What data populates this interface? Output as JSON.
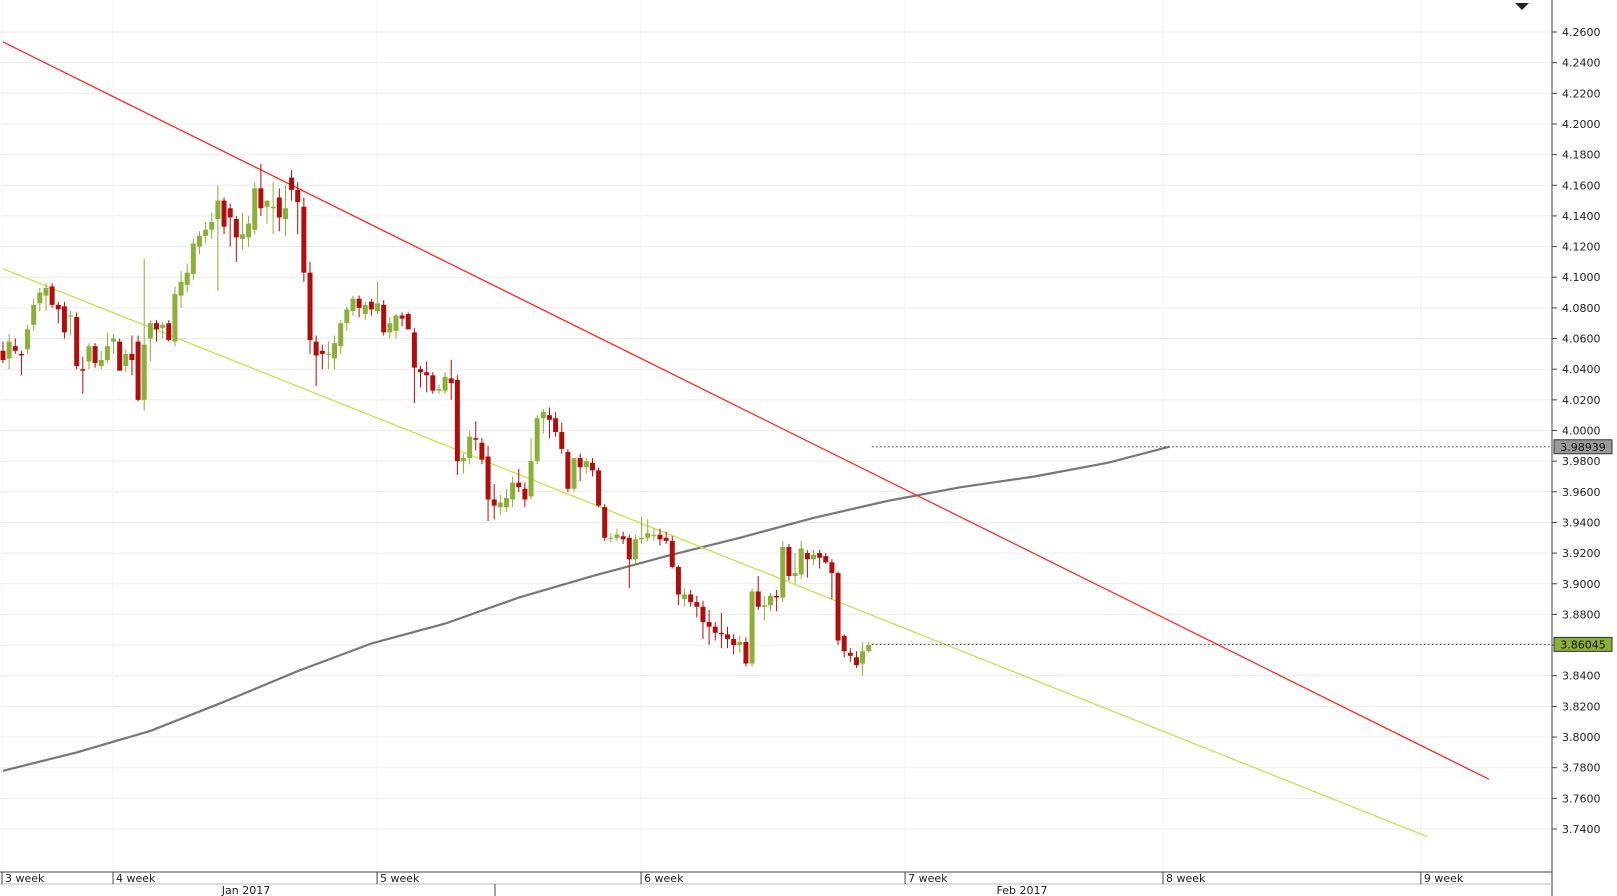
{
  "chart_data": {
    "type": "candlestick",
    "title": "",
    "xlabel": "",
    "ylabel": "",
    "ylim": [
      3.728,
      4.278
    ],
    "colors": {
      "up": "#8cae3a",
      "down": "#b00d0d",
      "resistance": "#ff2a2a",
      "support": "#c9e05a",
      "moving_average": "#777777"
    },
    "y_ticks": [
      "4.2600",
      "4.2400",
      "4.2200",
      "4.2000",
      "4.1800",
      "4.1600",
      "4.1400",
      "4.1200",
      "4.1000",
      "4.0800",
      "4.0600",
      "4.0400",
      "4.0200",
      "4.0000",
      "3.9800",
      "3.9600",
      "3.9400",
      "3.9200",
      "3.9000",
      "3.8800",
      "3.8600",
      "3.8400",
      "3.8200",
      "3.8000",
      "3.7800",
      "3.7600",
      "3.7400"
    ],
    "x_ticks": [
      "3 week",
      "4 week",
      "5 week",
      "6 week",
      "7 week",
      "8 week",
      "9 week"
    ],
    "months": [
      "Jan 2017",
      "Feb 2017"
    ],
    "price_badges": [
      {
        "label": "3.98939",
        "value": 3.98939,
        "style": "gray"
      },
      {
        "label": "3.86045",
        "value": 3.86045,
        "style": "green"
      }
    ],
    "trendlines": [
      {
        "name": "resistance",
        "from": [
          0,
          4.2535
        ],
        "to": [
          242,
          3.7725
        ]
      },
      {
        "name": "support",
        "from": [
          0,
          4.1055
        ],
        "to": [
          232,
          3.735
        ]
      }
    ],
    "moving_average": [
      [
        0,
        3.778
      ],
      [
        12,
        3.79
      ],
      [
        24,
        3.804
      ],
      [
        36,
        3.823
      ],
      [
        48,
        3.843
      ],
      [
        60,
        3.861
      ],
      [
        72,
        3.874
      ],
      [
        84,
        3.891
      ],
      [
        96,
        3.905
      ],
      [
        108,
        3.918
      ],
      [
        120,
        3.93
      ],
      [
        132,
        3.943
      ],
      [
        144,
        3.954
      ],
      [
        156,
        3.963
      ],
      [
        168,
        3.97
      ],
      [
        180,
        3.979
      ],
      [
        190,
        3.9894
      ]
    ],
    "candles": [
      [
        4.052,
        4.058,
        4.044,
        4.046
      ],
      [
        4.047,
        4.063,
        4.04,
        4.058
      ],
      [
        4.055,
        4.06,
        4.05,
        4.052
      ],
      [
        4.05,
        4.052,
        4.036,
        4.049
      ],
      [
        4.053,
        4.069,
        4.05,
        4.066
      ],
      [
        4.069,
        4.086,
        4.065,
        4.082
      ],
      [
        4.083,
        4.093,
        4.078,
        4.09
      ],
      [
        4.088,
        4.096,
        4.078,
        4.093
      ],
      [
        4.094,
        4.096,
        4.08,
        4.082
      ],
      [
        4.082,
        4.084,
        4.07,
        4.079
      ],
      [
        4.081,
        4.084,
        4.06,
        4.064
      ],
      [
        4.075,
        4.078,
        4.062,
        4.075
      ],
      [
        4.074,
        4.077,
        4.04,
        4.042
      ],
      [
        4.04,
        4.048,
        4.024,
        4.039
      ],
      [
        4.045,
        4.057,
        4.04,
        4.055
      ],
      [
        4.055,
        4.057,
        4.041,
        4.044
      ],
      [
        4.042,
        4.052,
        4.04,
        4.046
      ],
      [
        4.046,
        4.064,
        4.044,
        4.055
      ],
      [
        4.058,
        4.063,
        4.05,
        4.06
      ],
      [
        4.058,
        4.06,
        4.04,
        4.039
      ],
      [
        4.042,
        4.053,
        4.038,
        4.05
      ],
      [
        4.05,
        4.062,
        4.036,
        4.046
      ],
      [
        4.058,
        4.062,
        4.019,
        4.02
      ],
      [
        4.02,
        4.112,
        4.013,
        4.056
      ],
      [
        4.06,
        4.072,
        4.045,
        4.07
      ],
      [
        4.07,
        4.072,
        4.058,
        4.066
      ],
      [
        4.067,
        4.071,
        4.06,
        4.069
      ],
      [
        4.07,
        4.072,
        4.058,
        4.059
      ],
      [
        4.058,
        4.094,
        4.055,
        4.089
      ],
      [
        4.088,
        4.104,
        4.08,
        4.097
      ],
      [
        4.095,
        4.109,
        4.09,
        4.103
      ],
      [
        4.102,
        4.125,
        4.098,
        4.122
      ],
      [
        4.12,
        4.13,
        4.115,
        4.127
      ],
      [
        4.127,
        4.136,
        4.122,
        4.131
      ],
      [
        4.131,
        4.142,
        4.125,
        4.136
      ],
      [
        4.138,
        4.16,
        4.091,
        4.15
      ],
      [
        4.15,
        4.152,
        4.128,
        4.133
      ],
      [
        4.145,
        4.148,
        4.12,
        4.139
      ],
      [
        4.138,
        4.14,
        4.11,
        4.126
      ],
      [
        4.125,
        4.142,
        4.118,
        4.128
      ],
      [
        4.126,
        4.14,
        4.12,
        4.135
      ],
      [
        4.131,
        4.162,
        4.128,
        4.158
      ],
      [
        4.158,
        4.174,
        4.14,
        4.145
      ],
      [
        4.146,
        4.15,
        4.135,
        4.15
      ],
      [
        4.145,
        4.162,
        4.128,
        4.146
      ],
      [
        4.152,
        4.158,
        4.13,
        4.139
      ],
      [
        4.138,
        4.16,
        4.127,
        4.145
      ],
      [
        4.165,
        4.17,
        4.15,
        4.157
      ],
      [
        4.157,
        4.162,
        4.128,
        4.149
      ],
      [
        4.146,
        4.152,
        4.097,
        4.103
      ],
      [
        4.103,
        4.11,
        4.05,
        4.059
      ],
      [
        4.058,
        4.062,
        4.029,
        4.049
      ],
      [
        4.052,
        4.056,
        4.04,
        4.05
      ],
      [
        4.05,
        4.058,
        4.04,
        4.05
      ],
      [
        4.047,
        4.062,
        4.04,
        4.057
      ],
      [
        4.055,
        4.072,
        4.05,
        4.07
      ],
      [
        4.07,
        4.081,
        4.065,
        4.079
      ],
      [
        4.078,
        4.088,
        4.075,
        4.086
      ],
      [
        4.086,
        4.088,
        4.074,
        4.08
      ],
      [
        4.076,
        4.084,
        4.072,
        4.082
      ],
      [
        4.084,
        4.086,
        4.075,
        4.079
      ],
      [
        4.078,
        4.097,
        4.076,
        4.083
      ],
      [
        4.082,
        4.085,
        4.062,
        4.064
      ],
      [
        4.064,
        4.074,
        4.06,
        4.07
      ],
      [
        4.065,
        4.076,
        4.06,
        4.075
      ],
      [
        4.075,
        4.077,
        4.068,
        4.073
      ],
      [
        4.076,
        4.077,
        4.066,
        4.066
      ],
      [
        4.064,
        4.067,
        4.018,
        4.041
      ],
      [
        4.04,
        4.042,
        4.028,
        4.038
      ],
      [
        4.038,
        4.045,
        4.025,
        4.036
      ],
      [
        4.036,
        4.038,
        4.024,
        4.026
      ],
      [
        4.026,
        4.03,
        4.024,
        4.027
      ],
      [
        4.026,
        4.038,
        4.024,
        4.035
      ],
      [
        4.034,
        4.046,
        4.02,
        4.031
      ],
      [
        4.033,
        4.036,
        3.971,
        3.98
      ],
      [
        3.98,
        3.985,
        3.972,
        3.982
      ],
      [
        3.982,
        4.0,
        3.978,
        3.996
      ],
      [
        3.995,
        4.006,
        3.987,
        3.994
      ],
      [
        3.992,
        3.995,
        3.978,
        3.981
      ],
      [
        3.983,
        3.99,
        3.941,
        3.955
      ],
      [
        3.955,
        3.965,
        3.942,
        3.951
      ],
      [
        3.95,
        3.958,
        3.945,
        3.953
      ],
      [
        3.95,
        3.962,
        3.947,
        3.956
      ],
      [
        3.955,
        3.97,
        3.95,
        3.966
      ],
      [
        3.966,
        3.975,
        3.96,
        3.963
      ],
      [
        3.962,
        3.966,
        3.95,
        3.955
      ],
      [
        3.957,
        3.995,
        3.955,
        3.98
      ],
      [
        3.98,
        4.01,
        3.978,
        4.008
      ],
      [
        4.008,
        4.014,
        3.998,
        4.012
      ],
      [
        4.01,
        4.015,
        3.995,
        4.007
      ],
      [
        4.008,
        4.012,
        3.996,
        3.999
      ],
      [
        3.999,
        4.005,
        3.985,
        3.988
      ],
      [
        3.986,
        3.988,
        3.96,
        3.962
      ],
      [
        3.962,
        3.98,
        3.96,
        3.982
      ],
      [
        3.982,
        3.985,
        3.967,
        3.976
      ],
      [
        3.976,
        3.982,
        3.972,
        3.98
      ],
      [
        3.979,
        3.982,
        3.97,
        3.974
      ],
      [
        3.974,
        3.976,
        3.95,
        3.951
      ],
      [
        3.95,
        3.952,
        3.928,
        3.93
      ],
      [
        3.93,
        3.933,
        3.927,
        3.93
      ],
      [
        3.93,
        3.936,
        3.928,
        3.932
      ],
      [
        3.931,
        3.934,
        3.926,
        3.929
      ],
      [
        3.93,
        3.932,
        3.897,
        3.916
      ],
      [
        3.916,
        3.932,
        3.913,
        3.929
      ],
      [
        3.929,
        3.944,
        3.926,
        3.93
      ],
      [
        3.93,
        3.942,
        3.928,
        3.933
      ],
      [
        3.932,
        3.936,
        3.928,
        3.932
      ],
      [
        3.932,
        3.936,
        3.925,
        3.929
      ],
      [
        3.93,
        3.934,
        3.926,
        3.928
      ],
      [
        3.928,
        3.931,
        3.91,
        3.911
      ],
      [
        3.911,
        3.912,
        3.886,
        3.893
      ],
      [
        3.89,
        3.897,
        3.885,
        3.893
      ],
      [
        3.893,
        3.896,
        3.885,
        3.888
      ],
      [
        3.888,
        3.892,
        3.878,
        3.885
      ],
      [
        3.885,
        3.889,
        3.864,
        3.875
      ],
      [
        3.875,
        3.883,
        3.86,
        3.872
      ],
      [
        3.872,
        3.875,
        3.863,
        3.868
      ],
      [
        3.868,
        3.881,
        3.858,
        3.867
      ],
      [
        3.867,
        3.872,
        3.858,
        3.864
      ],
      [
        3.864,
        3.867,
        3.854,
        3.86
      ],
      [
        3.86,
        3.866,
        3.855,
        3.862
      ],
      [
        3.862,
        3.865,
        3.846,
        3.848
      ],
      [
        3.848,
        3.897,
        3.846,
        3.895
      ],
      [
        3.895,
        3.905,
        3.883,
        3.885
      ],
      [
        3.885,
        3.892,
        3.876,
        3.886
      ],
      [
        3.886,
        3.894,
        3.882,
        3.892
      ],
      [
        3.892,
        3.896,
        3.882,
        3.891
      ],
      [
        3.891,
        3.928,
        3.888,
        3.924
      ],
      [
        3.924,
        3.926,
        3.902,
        3.905
      ],
      [
        3.905,
        3.92,
        3.9,
        3.907
      ],
      [
        3.906,
        3.928,
        3.903,
        3.923
      ],
      [
        3.92,
        3.922,
        3.904,
        3.916
      ],
      [
        3.916,
        3.922,
        3.912,
        3.919
      ],
      [
        3.92,
        3.922,
        3.91,
        3.917
      ],
      [
        3.918,
        3.92,
        3.913,
        3.914
      ],
      [
        3.914,
        3.916,
        3.89,
        3.907
      ],
      [
        3.907,
        3.908,
        3.86,
        3.863
      ],
      [
        3.866,
        3.867,
        3.852,
        3.856
      ],
      [
        3.855,
        3.858,
        3.849,
        3.853
      ],
      [
        3.852,
        3.856,
        3.845,
        3.847
      ],
      [
        3.848,
        3.862,
        3.84,
        3.856
      ],
      [
        3.856,
        3.862,
        3.855,
        3.86
      ]
    ]
  }
}
